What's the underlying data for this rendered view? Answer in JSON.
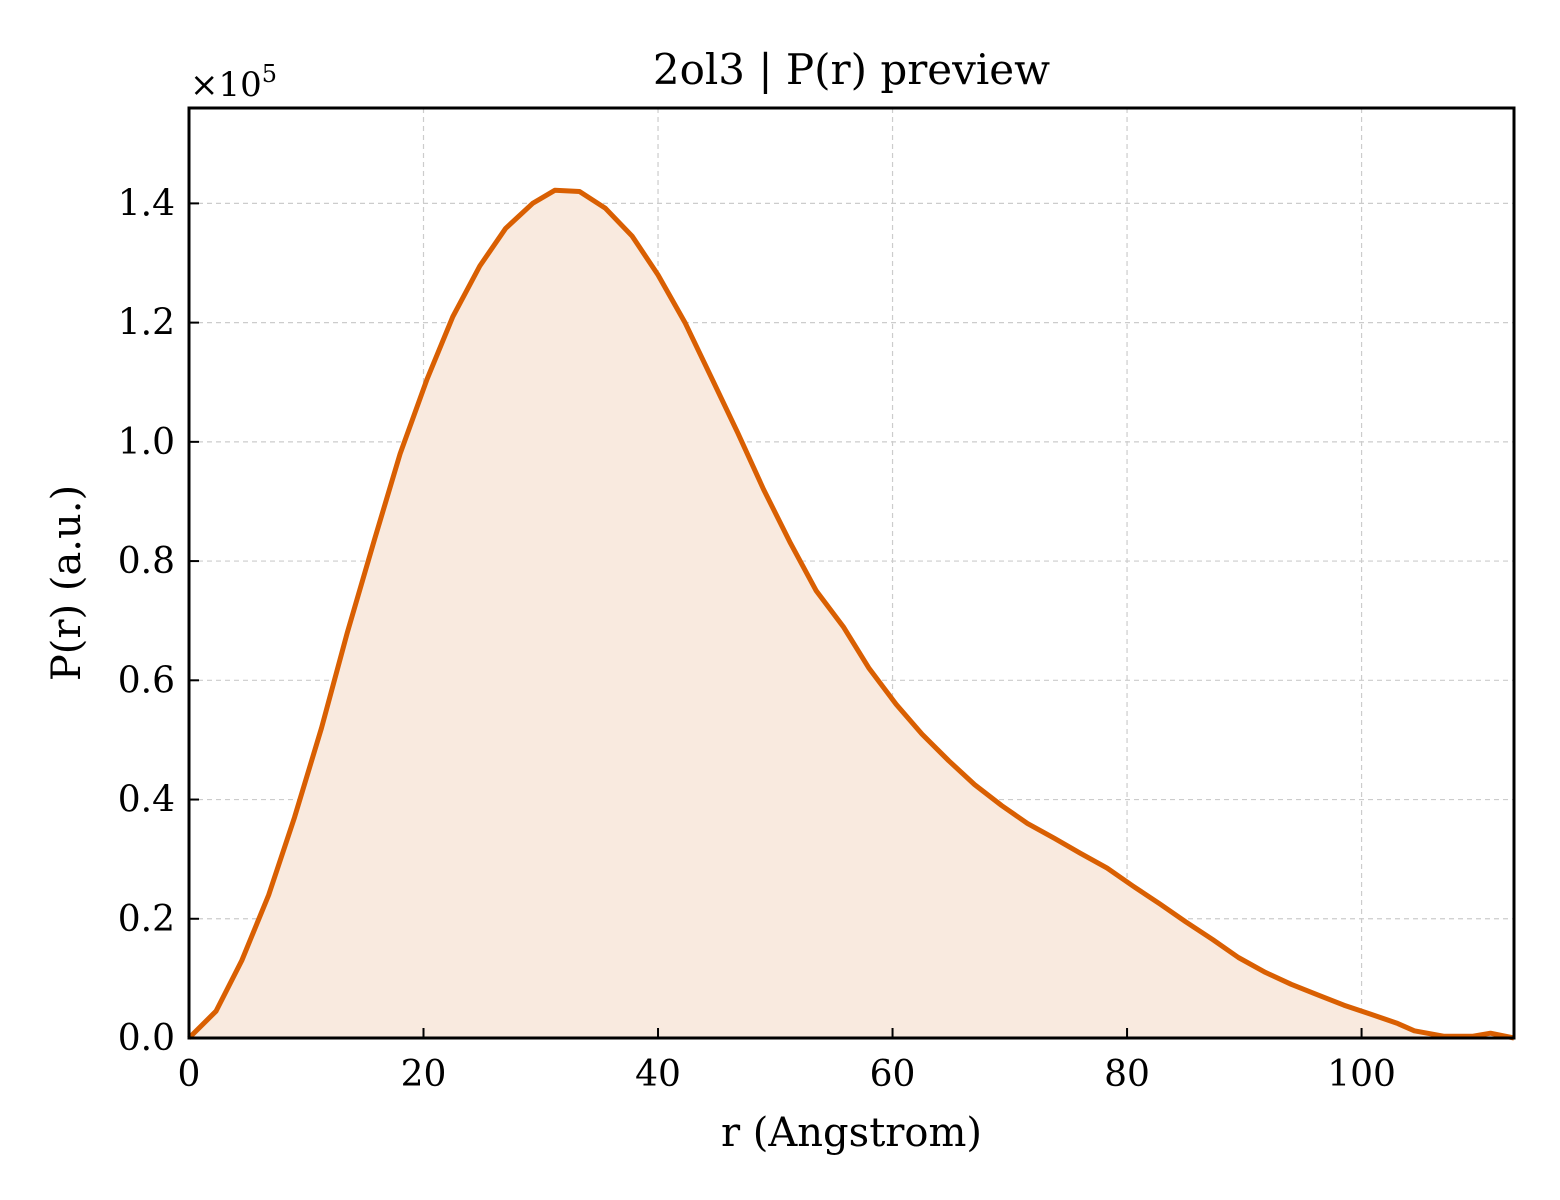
{
  "chart_data": {
    "type": "area",
    "title": "2ol3 | P(r) preview",
    "xlabel": "r (Angstrom)",
    "ylabel": "P(r) (a.u.)",
    "y_multiplier_label": "×10",
    "y_multiplier_exponent": "5",
    "xlim": [
      0,
      113
    ],
    "ylim": [
      0,
      1.56
    ],
    "x_ticks": [
      0,
      20,
      40,
      60,
      80,
      100
    ],
    "x_tick_labels": [
      "0",
      "20",
      "40",
      "60",
      "80",
      "100"
    ],
    "y_ticks": [
      0.0,
      0.2,
      0.4,
      0.6,
      0.8,
      1.0,
      1.2,
      1.4
    ],
    "y_tick_labels": [
      "0.0",
      "0.2",
      "0.4",
      "0.6",
      "0.8",
      "1.0",
      "1.2",
      "1.4"
    ],
    "grid": true,
    "colors": {
      "line": "#d95f02",
      "fill": "#f9eadf"
    },
    "series": [
      {
        "x": [
          0,
          2.3,
          4.5,
          6.8,
          9.0,
          11.3,
          13.5,
          15.8,
          18.0,
          20.3,
          22.5,
          24.8,
          27.0,
          29.3,
          31.2,
          33.3,
          35.5,
          37.8,
          40.0,
          42.3,
          44.5,
          46.8,
          49.0,
          51.3,
          53.5,
          55.8,
          58.0,
          60.3,
          62.5,
          64.8,
          67.0,
          69.3,
          71.5,
          73.8,
          76.0,
          78.3,
          80.5,
          82.8,
          85.0,
          87.3,
          89.5,
          91.8,
          94.0,
          96.3,
          98.5,
          100.8,
          103.0,
          104.5,
          107.0,
          109.5,
          111.0,
          113.0
        ],
        "y": [
          0.0,
          0.045,
          0.13,
          0.24,
          0.37,
          0.52,
          0.68,
          0.835,
          0.98,
          1.105,
          1.21,
          1.295,
          1.358,
          1.4,
          1.422,
          1.42,
          1.392,
          1.345,
          1.28,
          1.2,
          1.11,
          1.015,
          0.92,
          0.83,
          0.75,
          0.69,
          0.62,
          0.56,
          0.51,
          0.465,
          0.425,
          0.39,
          0.36,
          0.335,
          0.31,
          0.285,
          0.255,
          0.225,
          0.195,
          0.165,
          0.135,
          0.11,
          0.09,
          0.072,
          0.055,
          0.04,
          0.025,
          0.012,
          0.003,
          0.003,
          0.008,
          0.0
        ]
      }
    ]
  }
}
